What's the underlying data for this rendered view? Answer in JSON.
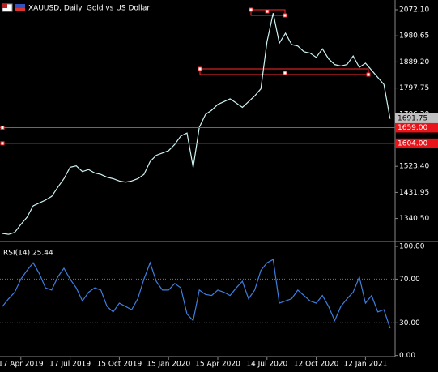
{
  "chart_data": [
    {
      "type": "line",
      "title": "XAUUSD, Daily:  Gold vs US Dollar",
      "color": "#cdf3f3",
      "values": [
        1288,
        1285,
        1292,
        1320,
        1345,
        1385,
        1395,
        1405,
        1418,
        1450,
        1480,
        1520,
        1525,
        1505,
        1512,
        1500,
        1495,
        1485,
        1480,
        1472,
        1468,
        1472,
        1480,
        1495,
        1540,
        1562,
        1570,
        1578,
        1600,
        1630,
        1640,
        1520,
        1660,
        1705,
        1720,
        1740,
        1750,
        1760,
        1745,
        1730,
        1750,
        1770,
        1795,
        1960,
        2060,
        1955,
        1990,
        1950,
        1945,
        1925,
        1920,
        1905,
        1935,
        1900,
        1880,
        1875,
        1880,
        1910,
        1870,
        1885,
        1860,
        1835,
        1810,
        1690
      ],
      "ylim": [
        1262.7,
        2106.2
      ],
      "yticks": [
        {
          "value": 1340.5,
          "label": "1340.50"
        },
        {
          "value": 1431.95,
          "label": "1431.95"
        },
        {
          "value": 1523.4,
          "label": "1523.40"
        },
        {
          "value": 1706.3,
          "label": "1706.30"
        },
        {
          "value": 1797.75,
          "label": "1797.75"
        },
        {
          "value": 1889.2,
          "label": "1889.20"
        },
        {
          "value": 1980.65,
          "label": "1980.65"
        },
        {
          "value": 2072.1,
          "label": "2072.10"
        }
      ],
      "current_price": 1691.75,
      "hlines": [
        {
          "value": 1659,
          "label": "1659.00"
        },
        {
          "value": 1604,
          "label": "1604.00"
        }
      ]
    },
    {
      "type": "line",
      "title": "RSI(14) 25.44",
      "color": "#3d7fe0",
      "categories": [
        null,
        null,
        null,
        "17 Apr 2019",
        null,
        null,
        null,
        null,
        null,
        null,
        null,
        "17 Jul 2019",
        null,
        null,
        null,
        null,
        null,
        null,
        null,
        "15 Oct 2019",
        null,
        null,
        null,
        null,
        null,
        null,
        null,
        "15 Jan 2020",
        null,
        null,
        null,
        null,
        null,
        null,
        null,
        "15 Apr 2020",
        null,
        null,
        null,
        null,
        null,
        null,
        null,
        "14 Jul 2020",
        null,
        null,
        null,
        null,
        null,
        null,
        null,
        "12 Oct 2020",
        null,
        null,
        null,
        null,
        null,
        null,
        null,
        "12 Jan 2021",
        null,
        null,
        null,
        null
      ],
      "values": [
        45,
        52,
        58,
        70,
        78,
        85,
        75,
        62,
        60,
        72,
        80,
        70,
        62,
        50,
        58,
        62,
        60,
        45,
        40,
        48,
        45,
        42,
        52,
        70,
        85,
        68,
        60,
        60,
        66,
        62,
        38,
        32,
        60,
        56,
        55,
        60,
        58,
        55,
        62,
        68,
        52,
        60,
        78,
        85,
        88,
        48,
        50,
        52,
        60,
        55,
        50,
        48,
        55,
        45,
        32,
        45,
        52,
        58,
        72,
        48,
        55,
        40,
        42,
        25
      ],
      "ylim": [
        -1,
        103
      ],
      "yticks": [
        {
          "value": 0,
          "label": "0.00"
        },
        {
          "value": 30,
          "label": "30.00"
        },
        {
          "value": 70,
          "label": "70.00"
        },
        {
          "value": 100,
          "label": "100.00"
        }
      ]
    }
  ]
}
